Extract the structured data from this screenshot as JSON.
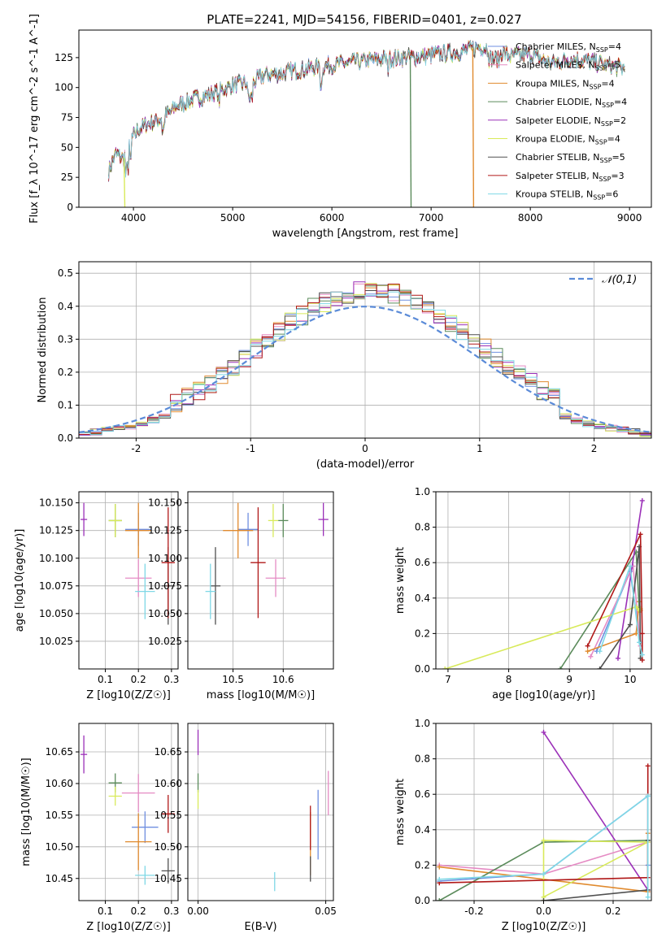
{
  "title": "PLATE=2241, MJD=54156, FIBERID=0401, z=0.027",
  "colors": {
    "Chabrier MILES": "#6f8fe0",
    "Salpeter MILES": "#e58bc4",
    "Kroupa MILES": "#e08a2e",
    "Chabrier ELODIE": "#5b8b5b",
    "Salpeter ELODIE": "#9b30b8",
    "Kroupa ELODIE": "#d8ea5a",
    "Chabrier STELIB": "#505050",
    "Salpeter STELIB": "#b01818",
    "Kroupa STELIB": "#7fd8e6"
  },
  "models": [
    {
      "name": "Chabrier MILES",
      "label": "Chabrier MILES, N",
      "n": "4"
    },
    {
      "name": "Salpeter MILES",
      "label": "Salpeter MILES, N",
      "n": "5"
    },
    {
      "name": "Kroupa MILES",
      "label": "Kroupa MILES, N",
      "n": "4"
    },
    {
      "name": "Chabrier ELODIE",
      "label": "Chabrier ELODIE, N",
      "n": "4"
    },
    {
      "name": "Salpeter ELODIE",
      "label": "Salpeter ELODIE, N",
      "n": "2"
    },
    {
      "name": "Kroupa ELODIE",
      "label": "Kroupa ELODIE, N",
      "n": "4"
    },
    {
      "name": "Chabrier STELIB",
      "label": "Chabrier STELIB, N",
      "n": "5"
    },
    {
      "name": "Salpeter STELIB",
      "label": "Salpeter STELIB, N",
      "n": "3"
    },
    {
      "name": "Kroupa STELIB",
      "label": "Kroupa STELIB, N",
      "n": "6"
    }
  ],
  "chart_data": [
    {
      "id": "spectrum",
      "type": "line",
      "xlabel": "wavelength [Angstrom, rest frame]",
      "ylabel": "Flux [f_λ 10^-17 erg cm^-2 s^-1 A^-1]",
      "xlim": [
        3450,
        9220
      ],
      "ylim": [
        0,
        148
      ],
      "xticks": [
        4000,
        5000,
        6000,
        7000,
        8000,
        9000
      ],
      "yticks": [
        0,
        25,
        50,
        75,
        100,
        125
      ],
      "series_note": "nine overlapping model spectra",
      "envelope": [
        [
          3750,
          30
        ],
        [
          3820,
          45
        ],
        [
          3900,
          40
        ],
        [
          3960,
          55
        ],
        [
          4050,
          65
        ],
        [
          4150,
          70
        ],
        [
          4300,
          75
        ],
        [
          4450,
          85
        ],
        [
          4600,
          90
        ],
        [
          4800,
          95
        ],
        [
          5000,
          102
        ],
        [
          5200,
          104
        ],
        [
          5300,
          110
        ],
        [
          5500,
          112
        ],
        [
          5700,
          115
        ],
        [
          5900,
          118
        ],
        [
          6100,
          120
        ],
        [
          6300,
          122
        ],
        [
          6500,
          124
        ],
        [
          6700,
          125
        ],
        [
          6900,
          126
        ],
        [
          7100,
          128
        ],
        [
          7300,
          130
        ],
        [
          7500,
          134
        ],
        [
          7650,
          132
        ],
        [
          7800,
          126
        ],
        [
          8000,
          128
        ],
        [
          8200,
          120
        ],
        [
          8400,
          124
        ],
        [
          8600,
          122
        ],
        [
          8800,
          118
        ],
        [
          8950,
          116
        ]
      ],
      "drops": [
        {
          "x": 6790,
          "color_of": "Chabrier ELODIE"
        },
        {
          "x": 7420,
          "color_of": "Kroupa MILES"
        },
        {
          "x": 3905,
          "color_of": "Kroupa ELODIE"
        }
      ]
    },
    {
      "id": "residuals",
      "type": "histogram",
      "xlabel": "(data-model)/error",
      "ylabel": "Normed distribution",
      "xlim": [
        -2.5,
        2.5
      ],
      "ylim": [
        0,
        0.535
      ],
      "xticks": [
        -2,
        -1,
        0,
        1,
        2
      ],
      "yticks": [
        0.0,
        0.1,
        0.2,
        0.3,
        0.4,
        0.5
      ],
      "legend": "𝒩(0,1)",
      "legend_position": "top-right",
      "bin_width": 0.1
    },
    {
      "id": "age-vs-Z",
      "type": "scatter",
      "xlabel": "Z [log10(Z/Z☉)]",
      "ylabel": "age [log10(age/yr)]",
      "xlim": [
        0.02,
        0.32
      ],
      "ylim": [
        10.0,
        10.16
      ],
      "xticks": [
        0.1,
        0.2,
        0.3
      ],
      "yticks": [
        10.025,
        10.05,
        10.075,
        10.1,
        10.125,
        10.15
      ],
      "points": [
        {
          "model": "Chabrier MILES",
          "x": 0.2,
          "xerr": 0.04,
          "y": 10.126,
          "yerr": 0.015
        },
        {
          "model": "Salpeter MILES",
          "x": 0.2,
          "xerr": 0.04,
          "y": 10.082,
          "yerr": 0.017
        },
        {
          "model": "Kroupa MILES",
          "x": 0.2,
          "xerr": 0.04,
          "y": 10.125,
          "yerr": 0.025
        },
        {
          "model": "Chabrier ELODIE",
          "x": 0.13,
          "xerr": 0.02,
          "y": 10.134,
          "yerr": 0.015
        },
        {
          "model": "Salpeter ELODIE",
          "x": 0.035,
          "xerr": 0.01,
          "y": 10.135,
          "yerr": 0.015
        },
        {
          "model": "Kroupa ELODIE",
          "x": 0.13,
          "xerr": 0.02,
          "y": 10.134,
          "yerr": 0.015
        },
        {
          "model": "Chabrier STELIB",
          "x": 0.29,
          "xerr": 0.02,
          "y": 10.075,
          "yerr": 0.035
        },
        {
          "model": "Salpeter STELIB",
          "x": 0.29,
          "xerr": 0.02,
          "y": 10.096,
          "yerr": 0.05
        },
        {
          "model": "Kroupa STELIB",
          "x": 0.22,
          "xerr": 0.03,
          "y": 10.07,
          "yerr": 0.025
        }
      ]
    },
    {
      "id": "age-vs-mass",
      "type": "scatter",
      "xlabel": "mass [log10(M/M☉)]",
      "ylabel": "",
      "xlim": [
        10.41,
        10.7
      ],
      "ylim": [
        10.0,
        10.16
      ],
      "xticks": [
        10.5,
        10.6
      ],
      "yticks": [
        10.025,
        10.05,
        10.075,
        10.1,
        10.125,
        10.15
      ],
      "points": [
        {
          "model": "Chabrier MILES",
          "x": 10.53,
          "xerr": 0.02,
          "y": 10.126,
          "yerr": 0.015
        },
        {
          "model": "Salpeter MILES",
          "x": 10.585,
          "xerr": 0.02,
          "y": 10.082,
          "yerr": 0.017
        },
        {
          "model": "Kroupa MILES",
          "x": 10.51,
          "xerr": 0.03,
          "y": 10.125,
          "yerr": 0.025
        },
        {
          "model": "Chabrier ELODIE",
          "x": 10.6,
          "xerr": 0.01,
          "y": 10.134,
          "yerr": 0.015
        },
        {
          "model": "Salpeter ELODIE",
          "x": 10.68,
          "xerr": 0.01,
          "y": 10.135,
          "yerr": 0.015
        },
        {
          "model": "Kroupa ELODIE",
          "x": 10.58,
          "xerr": 0.01,
          "y": 10.134,
          "yerr": 0.015
        },
        {
          "model": "Chabrier STELIB",
          "x": 10.465,
          "xerr": 0.01,
          "y": 10.075,
          "yerr": 0.035
        },
        {
          "model": "Salpeter STELIB",
          "x": 10.55,
          "xerr": 0.015,
          "y": 10.096,
          "yerr": 0.05
        },
        {
          "model": "Kroupa STELIB",
          "x": 10.455,
          "xerr": 0.01,
          "y": 10.07,
          "yerr": 0.025
        }
      ]
    },
    {
      "id": "weight-vs-age",
      "type": "line",
      "xlabel": "age [log10(age/yr)]",
      "ylabel": "mass weight",
      "xlim": [
        6.8,
        10.35
      ],
      "ylim": [
        0,
        1
      ],
      "xticks": [
        7,
        8,
        9,
        10
      ],
      "yticks": [
        0.0,
        0.2,
        0.4,
        0.6,
        0.8,
        1.0
      ],
      "series": [
        {
          "model": "Chabrier MILES",
          "points": [
            [
              9.45,
              0.1
            ],
            [
              10.0,
              0.55
            ],
            [
              10.15,
              0.2
            ],
            [
              10.17,
              0.15
            ]
          ]
        },
        {
          "model": "Salpeter MILES",
          "points": [
            [
              9.35,
              0.07
            ],
            [
              10.05,
              0.58
            ],
            [
              10.15,
              0.2
            ],
            [
              10.17,
              0.13
            ]
          ]
        },
        {
          "model": "Kroupa MILES",
          "points": [
            [
              9.3,
              0.1
            ],
            [
              10.1,
              0.2
            ],
            [
              10.15,
              0.38
            ],
            [
              10.17,
              0.33
            ]
          ]
        },
        {
          "model": "Chabrier ELODIE",
          "points": [
            [
              8.85,
              0.0
            ],
            [
              10.1,
              0.66
            ],
            [
              10.15,
              0.34
            ]
          ]
        },
        {
          "model": "Salpeter ELODIE",
          "points": [
            [
              9.8,
              0.06
            ],
            [
              10.2,
              0.95
            ]
          ]
        },
        {
          "model": "Kroupa ELODIE",
          "points": [
            [
              6.95,
              0.0
            ],
            [
              10.1,
              0.35
            ],
            [
              10.15,
              0.33
            ],
            [
              10.17,
              0.34
            ]
          ]
        },
        {
          "model": "Chabrier STELIB",
          "points": [
            [
              9.5,
              0.0
            ],
            [
              10.0,
              0.25
            ],
            [
              10.15,
              0.69
            ],
            [
              10.17,
              0.06
            ]
          ]
        },
        {
          "model": "Salpeter STELIB",
          "points": [
            [
              9.3,
              0.13
            ],
            [
              10.17,
              0.76
            ],
            [
              10.2,
              0.2
            ],
            [
              10.2,
              0.05
            ]
          ]
        },
        {
          "model": "Kroupa STELIB",
          "points": [
            [
              9.5,
              0.1
            ],
            [
              10.0,
              0.58
            ],
            [
              10.15,
              0.15
            ],
            [
              10.2,
              0.08
            ]
          ]
        }
      ]
    },
    {
      "id": "mass-vs-Z",
      "type": "scatter",
      "xlabel": "Z [log10(Z/Z☉)]",
      "ylabel": "mass [log10(M/M☉)]",
      "xlim": [
        0.02,
        0.32
      ],
      "ylim": [
        10.415,
        10.695
      ],
      "xticks": [
        0.1,
        0.2,
        0.3
      ],
      "yticks": [
        10.45,
        10.5,
        10.55,
        10.6,
        10.65
      ],
      "points": [
        {
          "model": "Chabrier MILES",
          "x": 0.22,
          "xerr": 0.04,
          "y": 10.531,
          "yerr": 0.025
        },
        {
          "model": "Salpeter MILES",
          "x": 0.2,
          "xerr": 0.05,
          "y": 10.585,
          "yerr": 0.03
        },
        {
          "model": "Kroupa MILES",
          "x": 0.2,
          "xerr": 0.04,
          "y": 10.508,
          "yerr": 0.045
        },
        {
          "model": "Chabrier ELODIE",
          "x": 0.13,
          "xerr": 0.02,
          "y": 10.601,
          "yerr": 0.015
        },
        {
          "model": "Salpeter ELODIE",
          "x": 0.035,
          "xerr": 0.01,
          "y": 10.646,
          "yerr": 0.03
        },
        {
          "model": "Kroupa ELODIE",
          "x": 0.13,
          "xerr": 0.02,
          "y": 10.58,
          "yerr": 0.015
        },
        {
          "model": "Chabrier STELIB",
          "x": 0.29,
          "xerr": 0.02,
          "y": 10.462,
          "yerr": 0.02
        },
        {
          "model": "Salpeter STELIB",
          "x": 0.29,
          "xerr": 0.02,
          "y": 10.552,
          "yerr": 0.03
        },
        {
          "model": "Kroupa STELIB",
          "x": 0.22,
          "xerr": 0.03,
          "y": 10.455,
          "yerr": 0.015
        }
      ]
    },
    {
      "id": "mass-vs-ebv",
      "type": "scatter",
      "xlabel": "E(B-V)",
      "ylabel": "",
      "xlim": [
        -0.004,
        0.053
      ],
      "ylim": [
        10.415,
        10.695
      ],
      "xticks": [
        0.0,
        0.05
      ],
      "yticks": [
        10.45,
        10.5,
        10.55,
        10.6,
        10.65
      ],
      "points": [
        {
          "model": "Chabrier MILES",
          "x": 0.047,
          "y": 10.535,
          "yerr": 0.055
        },
        {
          "model": "Salpeter MILES",
          "x": 0.051,
          "y": 10.585,
          "yerr": 0.035
        },
        {
          "model": "Kroupa MILES",
          "x": 0.044,
          "y": 10.505,
          "yerr": 0.05
        },
        {
          "model": "Chabrier ELODIE",
          "x": 0.0,
          "y": 10.601,
          "yerr": 0.015
        },
        {
          "model": "Salpeter ELODIE",
          "x": 0.0,
          "y": 10.665,
          "yerr": 0.02
        },
        {
          "model": "Kroupa ELODIE",
          "x": 0.0,
          "y": 10.575,
          "yerr": 0.015
        },
        {
          "model": "Chabrier STELIB",
          "x": 0.044,
          "y": 10.465,
          "yerr": 0.02
        },
        {
          "model": "Salpeter STELIB",
          "x": 0.044,
          "y": 10.53,
          "yerr": 0.035
        },
        {
          "model": "Kroupa STELIB",
          "x": 0.03,
          "y": 10.445,
          "yerr": 0.015
        }
      ]
    },
    {
      "id": "weight-vs-Z",
      "type": "line",
      "xlabel": "Z [log10(Z/Z☉)]",
      "ylabel": "mass weight",
      "xlim": [
        -0.31,
        0.31
      ],
      "ylim": [
        0,
        1
      ],
      "xticks": [
        -0.2,
        0.0,
        0.2
      ],
      "yticks": [
        0.0,
        0.2,
        0.4,
        0.6,
        0.8,
        1.0
      ],
      "series": [
        {
          "model": "Chabrier MILES",
          "points": [
            [
              -0.3,
              0.11
            ],
            [
              0.0,
              0.15
            ],
            [
              0.3,
              0.59
            ],
            [
              0.3,
              0.2
            ]
          ]
        },
        {
          "model": "Salpeter MILES",
          "points": [
            [
              -0.3,
              0.2
            ],
            [
              0.0,
              0.15
            ],
            [
              0.3,
              0.33
            ],
            [
              0.3,
              0.05
            ]
          ]
        },
        {
          "model": "Kroupa MILES",
          "points": [
            [
              -0.3,
              0.19
            ],
            [
              0.3,
              0.05
            ],
            [
              0.3,
              0.38
            ]
          ]
        },
        {
          "model": "Chabrier ELODIE",
          "points": [
            [
              -0.3,
              0.0
            ],
            [
              0.0,
              0.33
            ],
            [
              0.3,
              0.34
            ]
          ]
        },
        {
          "model": "Salpeter ELODIE",
          "points": [
            [
              0.0,
              0.95
            ],
            [
              0.3,
              0.06
            ]
          ]
        },
        {
          "model": "Kroupa ELODIE",
          "points": [
            [
              0.0,
              0.0
            ],
            [
              0.0,
              0.34
            ],
            [
              0.3,
              0.33
            ],
            [
              0.0,
              0.02
            ]
          ]
        },
        {
          "model": "Chabrier STELIB",
          "points": [
            [
              0.0,
              0.0
            ],
            [
              0.3,
              0.06
            ],
            [
              0.3,
              0.34
            ]
          ]
        },
        {
          "model": "Salpeter STELIB",
          "points": [
            [
              -0.3,
              0.1
            ],
            [
              0.3,
              0.13
            ],
            [
              0.3,
              0.76
            ]
          ]
        },
        {
          "model": "Kroupa STELIB",
          "points": [
            [
              -0.3,
              0.12
            ],
            [
              0.0,
              0.15
            ],
            [
              0.3,
              0.59
            ],
            [
              0.3,
              0.02
            ]
          ]
        }
      ]
    }
  ]
}
